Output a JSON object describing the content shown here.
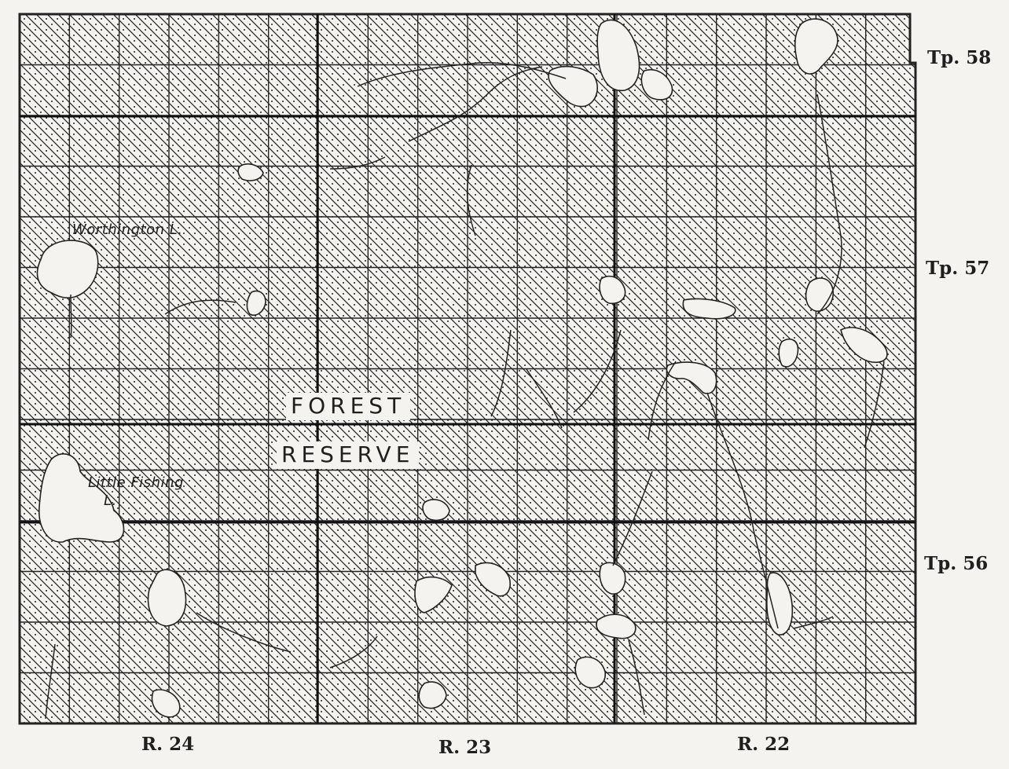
{
  "map": {
    "township_labels": [
      "Tp. 58",
      "Tp. 57",
      "Tp. 56"
    ],
    "range_labels": [
      "R. 24",
      "R. 23",
      "R. 22"
    ],
    "lake_labels": {
      "worthington": "Worthington L.",
      "little_fishing_line1": "Little Fishing",
      "little_fishing_line2": "L."
    },
    "reserve_label": {
      "line1": "FOREST",
      "line2": "RESERVE"
    },
    "legend_pattern": "diagonal-hatch-with-dots"
  }
}
